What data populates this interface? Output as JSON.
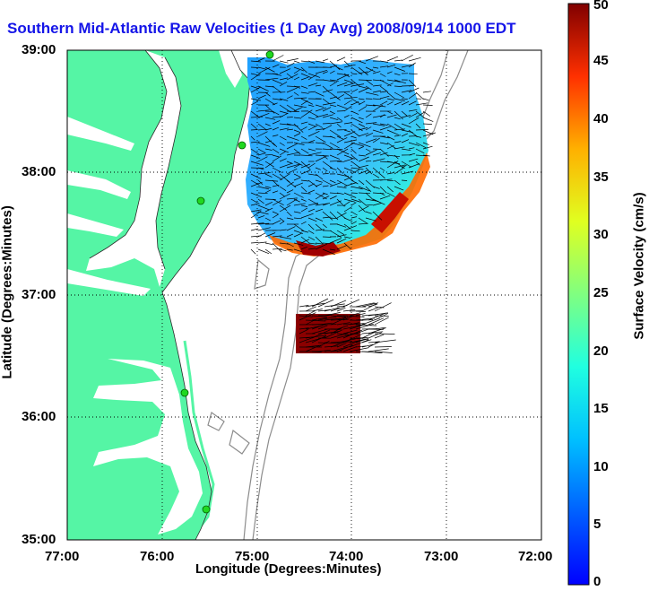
{
  "title": "Southern Mid-Atlantic Raw Velocities (1 Day Avg) 2008/09/14 1000 EDT",
  "x_axis": {
    "label": "Longitude (Degrees:Minutes)",
    "ticks": [
      "77:00",
      "76:00",
      "75:00",
      "74:00",
      "73:00",
      "72:00"
    ]
  },
  "y_axis": {
    "label": "Latitude (Degrees:Minutes)",
    "ticks": [
      "39:00",
      "38:00",
      "37:00",
      "36:00",
      "35:00"
    ]
  },
  "colorbar": {
    "label": "Surface Velocity (cm/s)",
    "min": 0,
    "max": 50,
    "ticks": [
      "0",
      "5",
      "10",
      "15",
      "20",
      "25",
      "30",
      "35",
      "40",
      "45",
      "50"
    ],
    "colormap": "jet"
  },
  "colors": {
    "land": "#55f5a5",
    "title": "#1515e8",
    "bathymetry": "#8c8c8c",
    "site_marker": "#20d820"
  },
  "map": {
    "lon_range": [
      -77,
      -72
    ],
    "lat_range": [
      35,
      39
    ],
    "grid": true,
    "radar_sites": 5
  }
}
